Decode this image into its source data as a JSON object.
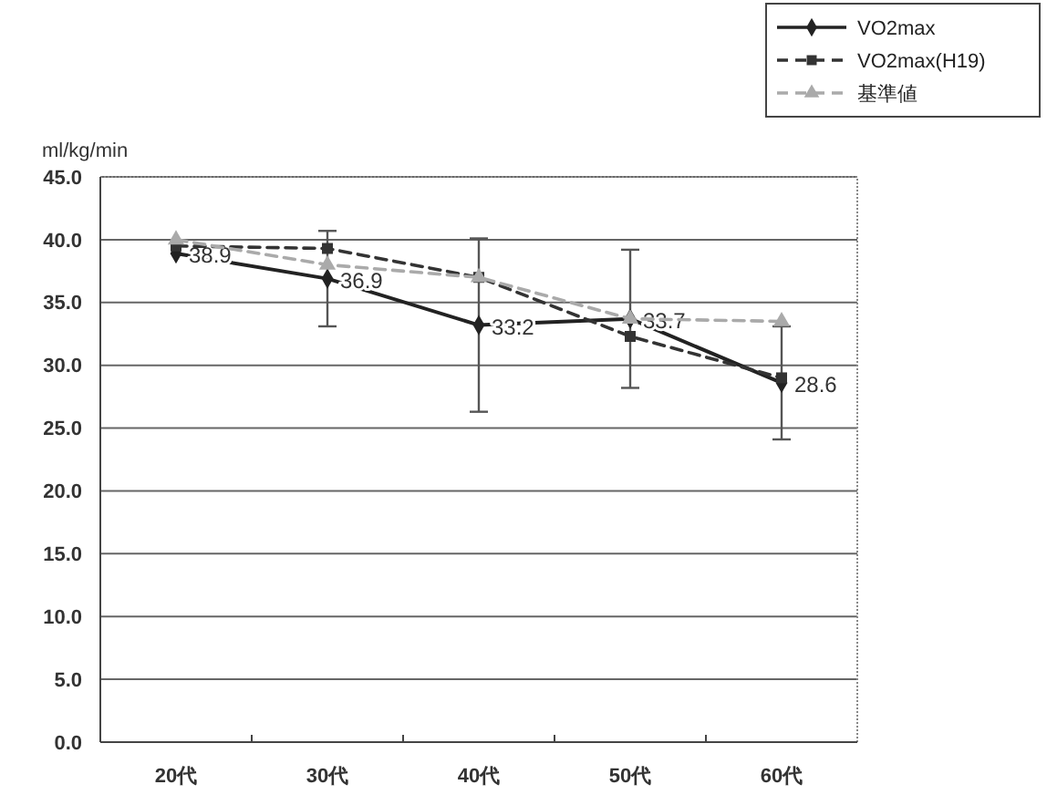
{
  "chart_data": {
    "type": "line",
    "ylabel": "ml/kg/min",
    "categories": [
      "20代",
      "30代",
      "40代",
      "50代",
      "60代"
    ],
    "ylim": [
      0,
      45
    ],
    "yticks": [
      {
        "value": 0,
        "label": "0.0"
      },
      {
        "value": 5,
        "label": "5.0"
      },
      {
        "value": 10,
        "label": "10.0"
      },
      {
        "value": 15,
        "label": "15.0"
      },
      {
        "value": 20,
        "label": "20.0"
      },
      {
        "value": 25,
        "label": "25.0"
      },
      {
        "value": 30,
        "label": "30.0"
      },
      {
        "value": 35,
        "label": "35.0"
      },
      {
        "value": 40,
        "label": "40.0"
      },
      {
        "value": 45,
        "label": "45.0"
      }
    ],
    "grid": "y",
    "legend": "top right",
    "series": [
      {
        "name": "VO2max",
        "color": "#222222",
        "marker": "diamond",
        "line_style": "solid",
        "values": [
          38.9,
          36.9,
          33.2,
          33.7,
          28.6
        ],
        "errors": [
          null,
          3.8,
          6.9,
          5.5,
          4.5
        ],
        "value_labels": [
          "38.9",
          "36.9",
          "33.2",
          "33.7",
          "28.6"
        ]
      },
      {
        "name": "VO2max(H19)",
        "color": "#333333",
        "marker": "square",
        "line_style": "dashed",
        "values": [
          39.5,
          39.3,
          37.0,
          32.3,
          29.0
        ]
      },
      {
        "name": "基準値",
        "color": "#aaaaaa",
        "marker": "triangle",
        "line_style": "dashed",
        "values": [
          40.0,
          38.0,
          37.0,
          33.7,
          33.5
        ]
      }
    ]
  }
}
